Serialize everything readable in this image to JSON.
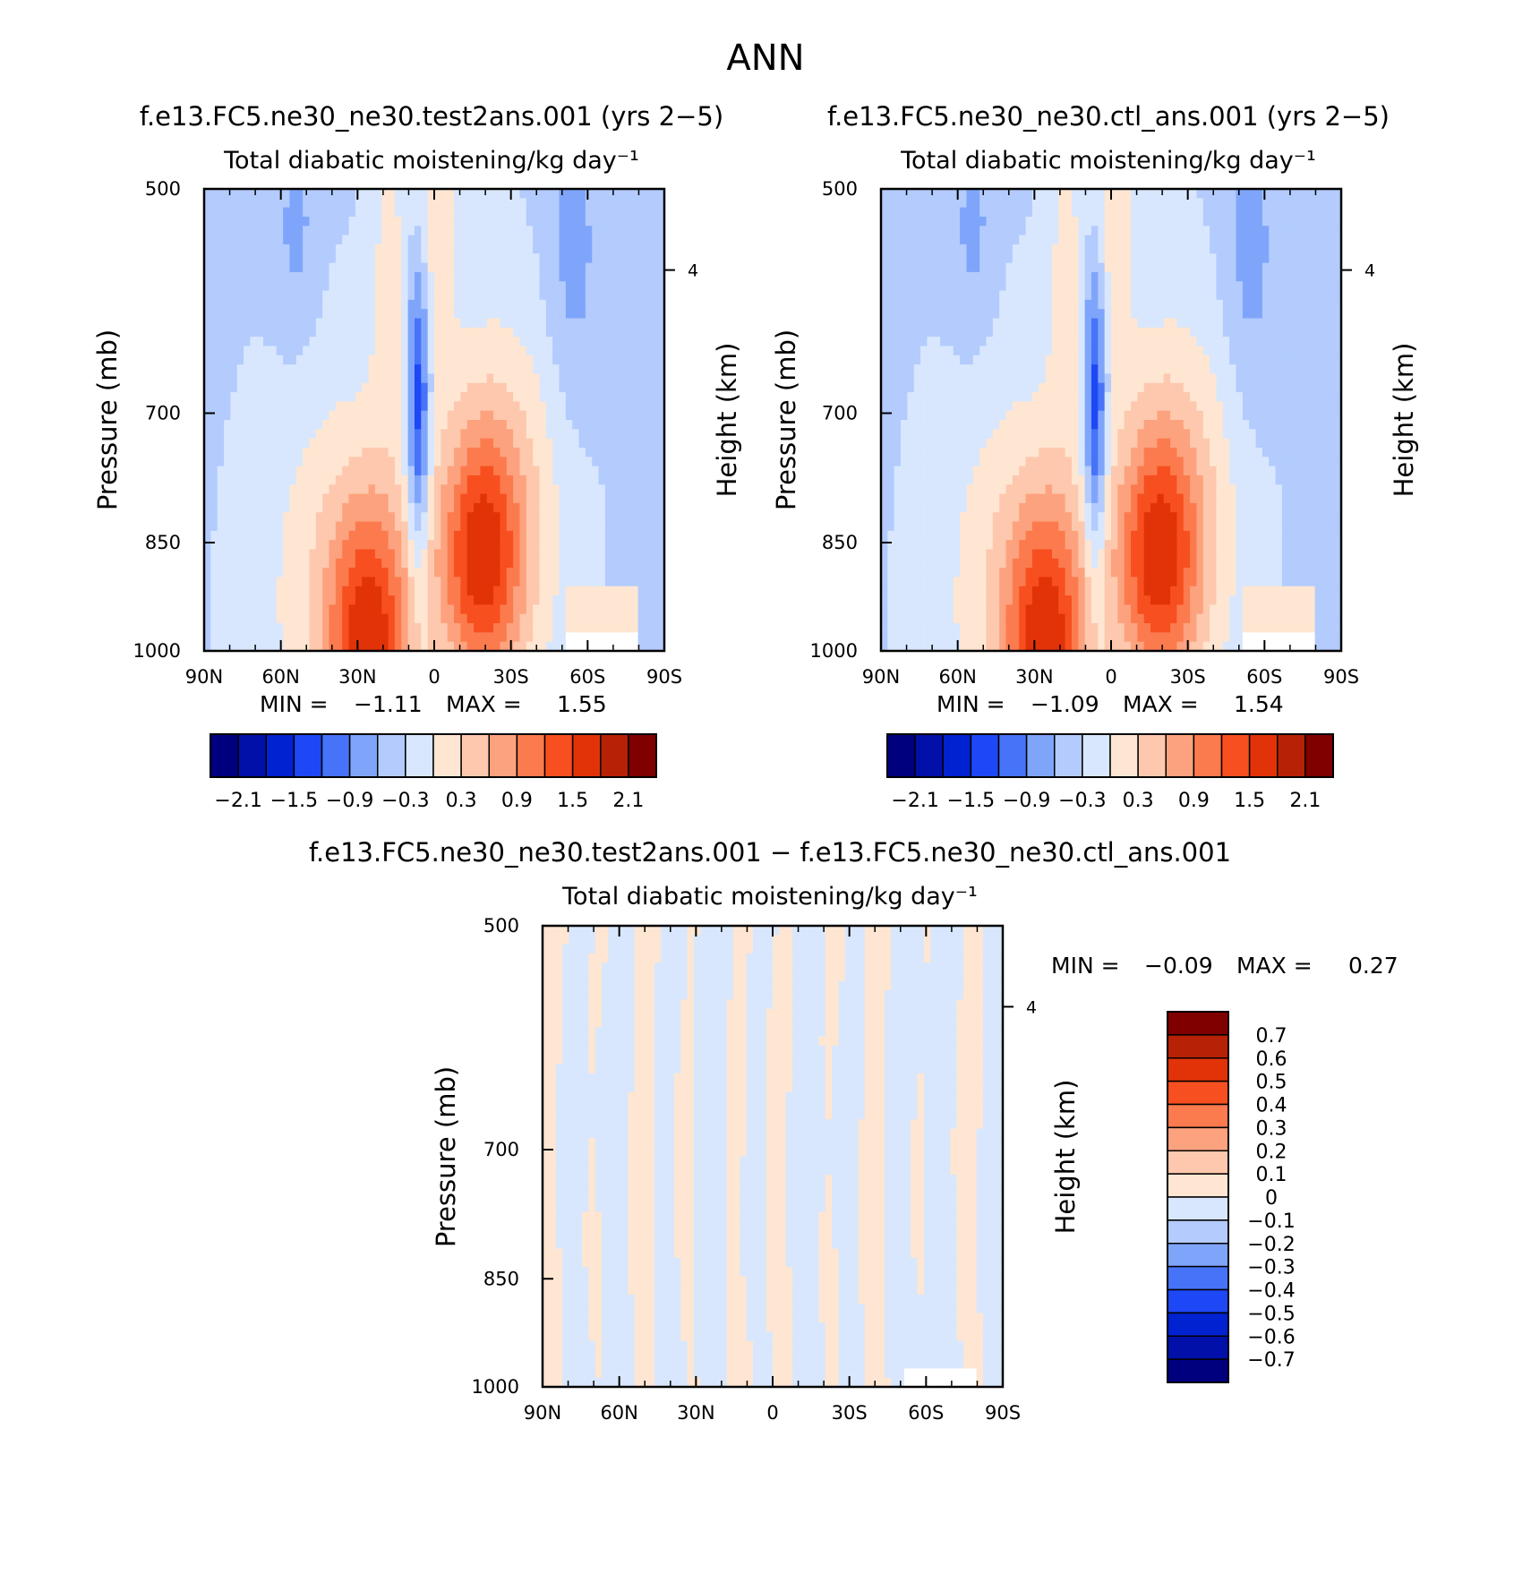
{
  "figure": {
    "title": "ANN"
  },
  "colors": {
    "main_scale": [
      "#00007f",
      "#0010a8",
      "#0022d0",
      "#1e48f6",
      "#4673f7",
      "#7fa5fb",
      "#b3cbfd",
      "#d8e7fd",
      "#fee6d2",
      "#fdc8ad",
      "#fda27e",
      "#fc7b4e",
      "#f74f1f",
      "#e23308",
      "#b72105",
      "#800000"
    ],
    "diff_scale": [
      "#00007f",
      "#0010a8",
      "#0022d0",
      "#1e48f6",
      "#4673f7",
      "#7fa5fb",
      "#b3cbfd",
      "#d8e7fd",
      "#fee6d2",
      "#fdc8ad",
      "#fda27e",
      "#fc7b4e",
      "#f74f1f",
      "#e23308",
      "#b72105",
      "#800000"
    ]
  },
  "chart_data": [
    {
      "type": "heatmap",
      "title": "f.e13.FC5.ne30_ne30.test2ans.001 (yrs 2−5)",
      "subtitle": "Total diabatic moistening/kg day⁻¹",
      "ylabel": "Pressure (mb)",
      "y2label": "Height (km)",
      "x_ticks": [
        "90N",
        "60N",
        "30N",
        "0",
        "30S",
        "60S",
        "90S"
      ],
      "y_ticks": [
        "500",
        "700",
        "850",
        "1000"
      ],
      "y2_ticks": [
        "4"
      ],
      "ylim": [
        1000,
        500
      ],
      "min_label": "MIN =",
      "min_value": "−1.11",
      "max_label": "MAX =",
      "max_value": "1.55",
      "colorbar_labels": [
        "−2.1",
        "−1.5",
        "−0.9",
        "−0.3",
        "0.3",
        "0.9",
        "1.5",
        "2.1"
      ],
      "levels": [
        -2.1,
        -1.8,
        -1.5,
        -1.2,
        -0.9,
        -0.6,
        -0.3,
        0,
        0.3,
        0.6,
        0.9,
        1.2,
        1.5,
        1.8,
        2.1
      ]
    },
    {
      "type": "heatmap",
      "title": "f.e13.FC5.ne30_ne30.ctl_ans.001 (yrs 2−5)",
      "subtitle": "Total diabatic moistening/kg day⁻¹",
      "ylabel": "Pressure (mb)",
      "y2label": "Height (km)",
      "x_ticks": [
        "90N",
        "60N",
        "30N",
        "0",
        "30S",
        "60S",
        "90S"
      ],
      "y_ticks": [
        "500",
        "700",
        "850",
        "1000"
      ],
      "y2_ticks": [
        "4"
      ],
      "ylim": [
        1000,
        500
      ],
      "min_label": "MIN =",
      "min_value": "−1.09",
      "max_label": "MAX =",
      "max_value": "1.54",
      "colorbar_labels": [
        "−2.1",
        "−1.5",
        "−0.9",
        "−0.3",
        "0.3",
        "0.9",
        "1.5",
        "2.1"
      ],
      "levels": [
        -2.1,
        -1.8,
        -1.5,
        -1.2,
        -0.9,
        -0.6,
        -0.3,
        0,
        0.3,
        0.6,
        0.9,
        1.2,
        1.5,
        1.8,
        2.1
      ]
    },
    {
      "type": "heatmap",
      "title": "f.e13.FC5.ne30_ne30.test2ans.001 − f.e13.FC5.ne30_ne30.ctl_ans.001",
      "subtitle": "Total diabatic moistening/kg day⁻¹",
      "ylabel": "Pressure (mb)",
      "y2label": "Height (km)",
      "x_ticks": [
        "90N",
        "60N",
        "30N",
        "0",
        "30S",
        "60S",
        "90S"
      ],
      "y_ticks": [
        "500",
        "700",
        "850",
        "1000"
      ],
      "y2_ticks": [
        "4"
      ],
      "ylim": [
        1000,
        500
      ],
      "min_label": "MIN =",
      "min_value": "−0.09",
      "max_label": "MAX =",
      "max_value": "0.27",
      "colorbar_labels": [
        "0.7",
        "0.6",
        "0.5",
        "0.4",
        "0.3",
        "0.2",
        "0.1",
        "0",
        "−0.1",
        "−0.2",
        "−0.3",
        "−0.4",
        "−0.5",
        "−0.6",
        "−0.7"
      ],
      "levels": [
        -0.7,
        -0.6,
        -0.5,
        -0.4,
        -0.3,
        -0.2,
        -0.1,
        0,
        0.1,
        0.2,
        0.3,
        0.4,
        0.5,
        0.6,
        0.7
      ]
    }
  ]
}
